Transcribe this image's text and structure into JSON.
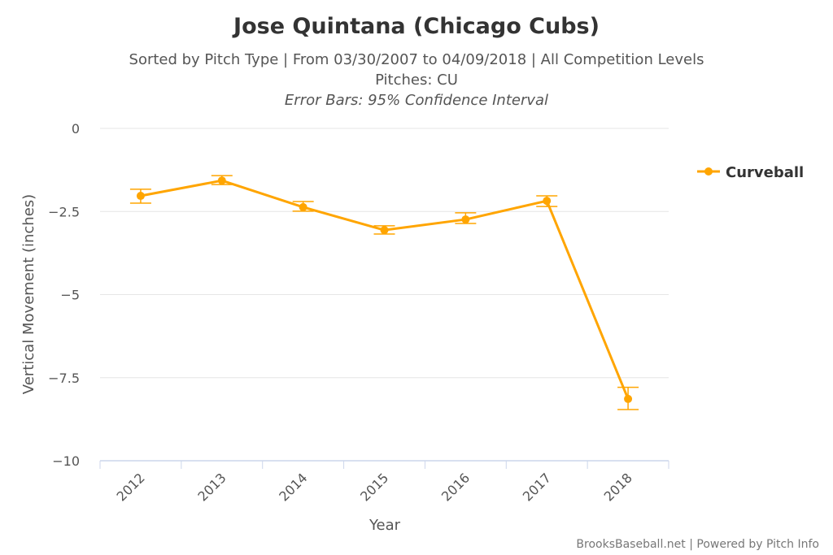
{
  "chart_data": {
    "type": "line",
    "title": "Jose Quintana (Chicago Cubs)",
    "subtitle": "Sorted by Pitch Type | From 03/30/2007 to 04/09/2018 | All Competition Levels",
    "subtitle2": "Pitches: CU",
    "subtitle3": "Error Bars: 95% Confidence Interval",
    "xlabel": "Year",
    "ylabel": "Vertical Movement (inches)",
    "categories": [
      "2012",
      "2013",
      "2014",
      "2015",
      "2016",
      "2017",
      "2018"
    ],
    "ylim": [
      -10,
      0
    ],
    "yticks": [
      0,
      -2.5,
      -5,
      -7.5,
      -10
    ],
    "ytick_labels": [
      "0",
      "−2.5",
      "−5",
      "−7.5",
      "−10"
    ],
    "grid": true,
    "legend_position": "right",
    "series": [
      {
        "name": "Curveball",
        "color": "#FFA500",
        "values": [
          -2.03,
          -1.57,
          -2.37,
          -3.06,
          -2.74,
          -2.18,
          -8.14
        ],
        "error_low": [
          -2.25,
          -1.69,
          -2.49,
          -3.18,
          -2.86,
          -2.35,
          -8.46
        ],
        "error_high": [
          -1.83,
          -1.42,
          -2.2,
          -2.93,
          -2.54,
          -2.03,
          -7.79
        ]
      }
    ],
    "credit": "BrooksBaseball.net | Powered by Pitch Info"
  }
}
